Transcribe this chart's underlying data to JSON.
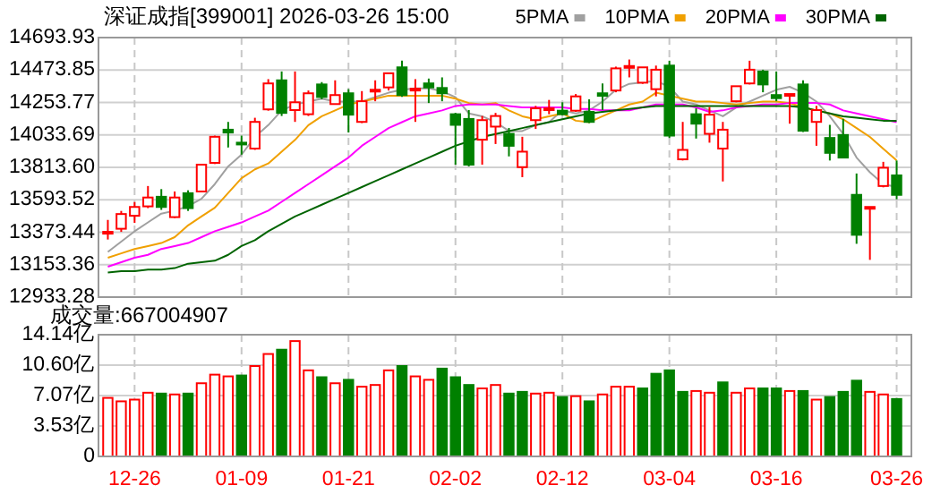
{
  "chart_data": [
    {
      "type": "candlestick",
      "title": "深证成指[399001] 2026-03-26 15:00",
      "legend": "top",
      "grid": true,
      "tick_labels": "y",
      "ylim": [
        12933.28,
        14693.93
      ],
      "yticks": [
        12933.28,
        13153.36,
        13373.44,
        13593.52,
        {
          "value": 13813.6,
          "label": "13813.60"
        },
        14033.69,
        14253.77,
        14473.85,
        14693.93
      ],
      "categories": [
        null,
        null,
        null,
        null,
        null,
        null,
        null,
        null,
        null,
        null,
        null,
        null,
        null,
        null,
        null,
        null,
        null,
        null,
        null,
        null,
        null,
        null,
        null,
        null,
        null,
        null,
        null,
        null,
        null,
        null,
        null,
        null,
        null,
        null,
        null,
        null,
        null,
        null,
        null,
        null,
        null,
        null,
        null,
        null,
        null,
        null,
        null,
        null,
        null,
        null,
        null,
        null,
        null,
        null,
        null,
        null,
        null,
        null,
        null,
        null
      ],
      "ohlc": [
        [
          13364,
          13457,
          13324,
          13376
        ],
        [
          13397,
          13518,
          13376,
          13497
        ],
        [
          13485,
          13578,
          13437,
          13545
        ],
        [
          13549,
          13687,
          13537,
          13609
        ],
        [
          13614,
          13666,
          13525,
          13545
        ],
        [
          13476,
          13650,
          13469,
          13609
        ],
        [
          13638,
          13658,
          13518,
          13537
        ],
        [
          13650,
          13832,
          13650,
          13832
        ],
        [
          13844,
          14029,
          13836,
          14021
        ],
        [
          14069,
          14122,
          13948,
          14050
        ],
        [
          13981,
          14029,
          13900,
          13977
        ],
        [
          13941,
          14150,
          13932,
          14122
        ],
        [
          14207,
          14412,
          14198,
          14383
        ],
        [
          14404,
          14464,
          14162,
          14183
        ],
        [
          14202,
          14464,
          14122,
          14255
        ],
        [
          14174,
          14335,
          14162,
          14316
        ],
        [
          14376,
          14392,
          14275,
          14291
        ],
        [
          14243,
          14404,
          14243,
          14304
        ],
        [
          14316,
          14344,
          14050,
          14171
        ],
        [
          14122,
          14331,
          14114,
          14262
        ],
        [
          14331,
          14404,
          14262,
          14340
        ],
        [
          14356,
          14452,
          14335,
          14452
        ],
        [
          14492,
          14537,
          14291,
          14304
        ],
        [
          14340,
          14412,
          14122,
          14347
        ],
        [
          14383,
          14416,
          14250,
          14356
        ],
        [
          14352,
          14424,
          14262,
          14316
        ],
        [
          14174,
          14183,
          13832,
          14102
        ],
        [
          14142,
          14202,
          13820,
          13832
        ],
        [
          14001,
          14162,
          13832,
          14134
        ],
        [
          14090,
          14183,
          13972,
          14162
        ],
        [
          14041,
          14081,
          13888,
          13960
        ],
        [
          13815,
          14021,
          13747,
          13920
        ],
        [
          14134,
          14231,
          14074,
          14214
        ],
        [
          14202,
          14271,
          14174,
          14214
        ],
        [
          14198,
          14255,
          14166,
          14174
        ],
        [
          14198,
          14311,
          14190,
          14295
        ],
        [
          14190,
          14275,
          14114,
          14122
        ],
        [
          14316,
          14383,
          14202,
          14299
        ],
        [
          14335,
          14497,
          14323,
          14485
        ],
        [
          14497,
          14545,
          14424,
          14501
        ],
        [
          14388,
          14492,
          14380,
          14492
        ],
        [
          14344,
          14504,
          14295,
          14476
        ],
        [
          14504,
          14537,
          14013,
          14029
        ],
        [
          13868,
          14122,
          13860,
          13932
        ],
        [
          14174,
          14214,
          14009,
          14110
        ],
        [
          14041,
          14223,
          13981,
          14171
        ],
        [
          13941,
          14122,
          13718,
          14069
        ],
        [
          14262,
          14364,
          14255,
          14364
        ],
        [
          14383,
          14537,
          14376,
          14476
        ],
        [
          14464,
          14476,
          14323,
          14376
        ],
        [
          14304,
          14464,
          14262,
          14283
        ],
        [
          14304,
          14311,
          14110,
          14311
        ],
        [
          14376,
          14404,
          14053,
          14062
        ],
        [
          14122,
          14231,
          13960,
          14202
        ],
        [
          14013,
          14102,
          13860,
          13912
        ],
        [
          14033,
          14142,
          13880,
          13880
        ],
        [
          13627,
          13772,
          13295,
          13356
        ],
        [
          13533,
          13545,
          13186,
          13545
        ],
        [
          13687,
          13851,
          13678,
          13811
        ],
        [
          13759,
          13860,
          13597,
          13627
        ]
      ],
      "colors": [
        "#ff0000",
        "#ff0000",
        "#ff0000",
        "#ff0000",
        "#008000",
        "#ff0000",
        "#008000",
        "#ff0000",
        "#ff0000",
        "#008000",
        "#008000",
        "#ff0000",
        "#ff0000",
        "#008000",
        "#ff0000",
        "#ff0000",
        "#008000",
        "#ff0000",
        "#008000",
        "#ff0000",
        "#ff0000",
        "#ff0000",
        "#008000",
        "#ff0000",
        "#008000",
        "#008000",
        "#008000",
        "#008000",
        "#ff0000",
        "#ff0000",
        "#008000",
        "#ff0000",
        "#ff0000",
        "#ff0000",
        "#008000",
        "#ff0000",
        "#008000",
        "#008000",
        "#ff0000",
        "#ff0000",
        "#ff0000",
        "#ff0000",
        "#008000",
        "#ff0000",
        "#008000",
        "#ff0000",
        "#ff0000",
        "#ff0000",
        "#ff0000",
        "#008000",
        "#008000",
        "#ff0000",
        "#008000",
        "#ff0000",
        "#008000",
        "#008000",
        "#008000",
        "#ff0000",
        "#ff0000",
        "#008000"
      ],
      "series": [
        {
          "name": "5PMA",
          "type": "line",
          "color": "#a0a0a0",
          "values": [
            13240,
            13310,
            13380,
            13440,
            13500,
            13520,
            13550,
            13600,
            13700,
            13820,
            13900,
            14020,
            14100,
            14200,
            14240,
            14260,
            14280,
            14260,
            14260,
            14260,
            14290,
            14320,
            14340,
            14350,
            14350,
            14330,
            14290,
            14180,
            14160,
            14120,
            14060,
            14060,
            14100,
            14120,
            14200,
            14180,
            14200,
            14260,
            14340,
            14380,
            14390,
            14400,
            14360,
            14260,
            14240,
            14200,
            14160,
            14220,
            14260,
            14300,
            14340,
            14360,
            14320,
            14260,
            14160,
            14040,
            13880,
            13780,
            13700,
            13680
          ]
        },
        {
          "name": "10PMA",
          "type": "line",
          "color": "#f0a000",
          "values": [
            13200,
            13230,
            13260,
            13280,
            13300,
            13340,
            13420,
            13480,
            13540,
            13640,
            13740,
            13800,
            13840,
            13920,
            14000,
            14100,
            14160,
            14200,
            14240,
            14260,
            14280,
            14300,
            14300,
            14300,
            14300,
            14300,
            14280,
            14250,
            14240,
            14250,
            14200,
            14160,
            14140,
            14160,
            14180,
            14130,
            14120,
            14160,
            14200,
            14240,
            14260,
            14320,
            14300,
            14280,
            14260,
            14260,
            14250,
            14240,
            14250,
            14260,
            14260,
            14250,
            14220,
            14200,
            14180,
            14140,
            14080,
            14020,
            13940,
            13860
          ]
        },
        {
          "name": "20PMA",
          "type": "line",
          "color": "#ff00ff",
          "values": [
            13140,
            13170,
            13200,
            13220,
            13260,
            13280,
            13300,
            13340,
            13380,
            13410,
            13440,
            13480,
            13520,
            13580,
            13640,
            13700,
            13760,
            13820,
            13880,
            13960,
            14020,
            14080,
            14120,
            14160,
            14180,
            14200,
            14230,
            14240,
            14240,
            14240,
            14230,
            14220,
            14220,
            14220,
            14220,
            14210,
            14210,
            14200,
            14200,
            14200,
            14220,
            14240,
            14240,
            14240,
            14220,
            14190,
            14200,
            14220,
            14230,
            14240,
            14240,
            14250,
            14250,
            14250,
            14240,
            14200,
            14180,
            14160,
            14140,
            14120
          ]
        },
        {
          "name": "30PMA",
          "type": "line",
          "color": "#006400",
          "values": [
            13100,
            13110,
            13110,
            13120,
            13120,
            13130,
            13160,
            13170,
            13180,
            13220,
            13280,
            13320,
            13380,
            13430,
            13480,
            13520,
            13560,
            13600,
            13640,
            13680,
            13720,
            13760,
            13800,
            13840,
            13880,
            13920,
            13960,
            13990,
            14020,
            14040,
            14060,
            14080,
            14100,
            14120,
            14140,
            14160,
            14180,
            14190,
            14200,
            14210,
            14220,
            14230,
            14230,
            14230,
            14230,
            14230,
            14230,
            14230,
            14230,
            14230,
            14230,
            14230,
            14220,
            14200,
            14180,
            14160,
            14150,
            14140,
            14130,
            14130
          ]
        }
      ]
    },
    {
      "type": "bar",
      "title": "成交量:667004907",
      "grid": true,
      "categories": [
        null,
        null,
        "12-26",
        null,
        null,
        null,
        null,
        null,
        null,
        null,
        "01-09",
        null,
        null,
        null,
        null,
        null,
        null,
        null,
        "01-21",
        null,
        null,
        null,
        null,
        null,
        null,
        null,
        "02-02",
        null,
        null,
        null,
        null,
        null,
        null,
        null,
        "02-12",
        null,
        null,
        null,
        null,
        null,
        null,
        null,
        "03-04",
        null,
        null,
        null,
        null,
        null,
        null,
        null,
        "03-16",
        null,
        null,
        null,
        null,
        null,
        null,
        null,
        null,
        "03-26"
      ],
      "ylim": [
        0,
        14.14
      ],
      "yticks": [
        0,
        {
          "value": 3.53,
          "label": "3.53亿"
        },
        {
          "value": 7.07,
          "label": "7.07亿"
        },
        {
          "value": 10.6,
          "label": "10.60亿"
        },
        {
          "value": 14.14,
          "label": "14.14亿"
        }
      ],
      "values": [
        6.8,
        6.4,
        6.6,
        7.4,
        7.3,
        7.2,
        7.3,
        8.5,
        9.5,
        9.3,
        9.4,
        10.5,
        11.9,
        12.4,
        13.4,
        10.0,
        9.2,
        8.5,
        8.9,
        8.1,
        8.3,
        10.0,
        10.5,
        9.3,
        8.9,
        10.2,
        9.2,
        8.3,
        7.9,
        8.3,
        7.3,
        7.5,
        7.3,
        7.4,
        6.9,
        7.0,
        6.4,
        7.2,
        8.1,
        8.1,
        7.9,
        9.6,
        10.0,
        7.5,
        7.6,
        7.4,
        8.6,
        7.4,
        7.9,
        7.9,
        7.9,
        7.6,
        7.6,
        6.6,
        6.9,
        7.5,
        8.8,
        7.5,
        7.2,
        6.67
      ],
      "colors": [
        "#ff0000",
        "#ff0000",
        "#ff0000",
        "#ff0000",
        "#008000",
        "#ff0000",
        "#008000",
        "#ff0000",
        "#ff0000",
        "#ff0000",
        "#008000",
        "#ff0000",
        "#ff0000",
        "#008000",
        "#ff0000",
        "#ff0000",
        "#008000",
        "#ff0000",
        "#008000",
        "#ff0000",
        "#ff0000",
        "#ff0000",
        "#008000",
        "#ff0000",
        "#ff0000",
        "#008000",
        "#008000",
        "#008000",
        "#ff0000",
        "#ff0000",
        "#008000",
        "#008000",
        "#ff0000",
        "#ff0000",
        "#008000",
        "#ff0000",
        "#008000",
        "#ff0000",
        "#ff0000",
        "#ff0000",
        "#008000",
        "#008000",
        "#008000",
        "#008000",
        "#ff0000",
        "#ff0000",
        "#008000",
        "#ff0000",
        "#ff0000",
        "#008000",
        "#008000",
        "#ff0000",
        "#008000",
        "#ff0000",
        "#008000",
        "#008000",
        "#008000",
        "#ff0000",
        "#ff0000",
        "#008000"
      ]
    }
  ]
}
